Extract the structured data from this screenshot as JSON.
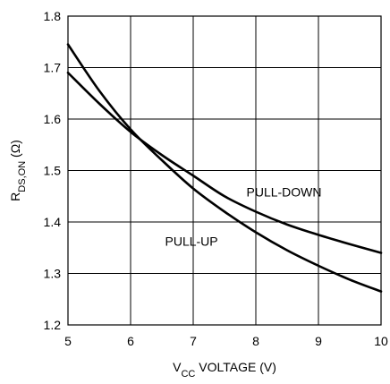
{
  "chart_data": {
    "type": "line",
    "xlabel": {
      "main": "V",
      "sub": "CC",
      "rest": " VOLTAGE (V)"
    },
    "ylabel": {
      "main": "R",
      "sub": "DS,ON",
      "rest": " (Ω)"
    },
    "xlim": [
      5,
      10
    ],
    "ylim": [
      1.2,
      1.8
    ],
    "x_ticks": [
      5,
      6,
      7,
      8,
      9,
      10
    ],
    "x_tick_labels": [
      "5",
      "6",
      "7",
      "8",
      "9",
      "10"
    ],
    "y_ticks": [
      1.2,
      1.3,
      1.4,
      1.5,
      1.6,
      1.7,
      1.8
    ],
    "y_tick_labels": [
      "1.2",
      "1.3",
      "1.4",
      "1.5",
      "1.6",
      "1.7",
      "1.8"
    ],
    "grid": true,
    "series": [
      {
        "name": "PULL-DOWN",
        "x": [
          5,
          5.5,
          6,
          6.5,
          7,
          7.5,
          8,
          8.5,
          9,
          9.5,
          10
        ],
        "y": [
          1.69,
          1.63,
          1.575,
          1.53,
          1.49,
          1.45,
          1.42,
          1.395,
          1.375,
          1.357,
          1.34
        ]
      },
      {
        "name": "PULL-UP",
        "x": [
          5,
          5.5,
          6,
          6.5,
          7,
          7.5,
          8,
          8.5,
          9,
          9.5,
          10
        ],
        "y": [
          1.745,
          1.655,
          1.58,
          1.52,
          1.465,
          1.42,
          1.38,
          1.345,
          1.315,
          1.288,
          1.265
        ]
      }
    ],
    "annotations": [
      {
        "text": "PULL-DOWN",
        "x": 7.85,
        "y": 1.458
      },
      {
        "text": "PULL-UP",
        "x": 6.55,
        "y": 1.363
      }
    ]
  }
}
